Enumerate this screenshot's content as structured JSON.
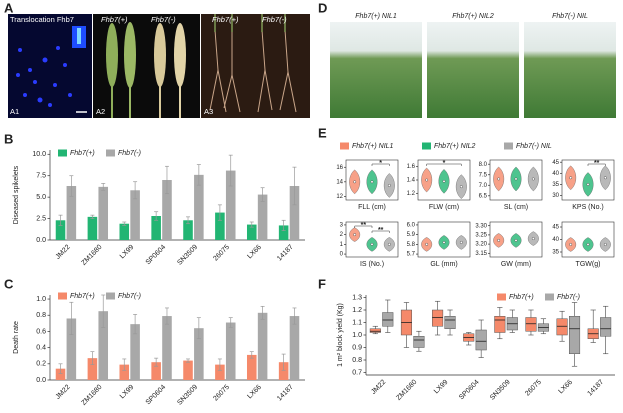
{
  "panel_A": {
    "label": "A",
    "subpanels": [
      {
        "label": "A1",
        "title": "Translocation Fhb7"
      },
      {
        "label": "A2",
        "titles": [
          "Fhb7(+)",
          "Fhb7(-)"
        ]
      },
      {
        "label": "A3",
        "titles": [
          "Fhb7(+)",
          "Fhb7(-)"
        ]
      }
    ]
  },
  "panel_D": {
    "label": "D",
    "photos": [
      "Fhb7(+) NIL1",
      "Fhb7(+) NIL2",
      "Fhb7(-) NIL"
    ]
  },
  "chart_data": [
    {
      "type": "bar",
      "label": "B",
      "ylabel": "Diseased spikelets",
      "categories": [
        "JM22",
        "ZM1680",
        "LX99",
        "SP0604",
        "SN3509",
        "26075",
        "LX66",
        "14187"
      ],
      "series": [
        {
          "name": "Fhb7(+)",
          "color": "#22b573",
          "values": [
            2.3,
            2.7,
            1.9,
            2.8,
            2.3,
            3.2,
            1.8,
            1.7
          ],
          "errors": [
            0.6,
            0.2,
            0.2,
            0.5,
            0.4,
            0.9,
            0.3,
            0.6
          ]
        },
        {
          "name": "Fhb7(-)",
          "color": "#a8a8a8",
          "values": [
            6.3,
            6.2,
            5.8,
            7.0,
            7.6,
            8.1,
            5.3,
            6.3
          ],
          "errors": [
            1.2,
            0.4,
            1.0,
            1.6,
            1.2,
            1.8,
            0.8,
            2.2
          ]
        }
      ],
      "ylim": [
        0,
        10.5
      ],
      "yticks": [
        {
          "value": 0,
          "label": "0.0"
        },
        2.5,
        {
          "value": 5,
          "label": "5.0"
        },
        7.5,
        {
          "value": 10,
          "label": "10.0"
        }
      ]
    },
    {
      "type": "bar",
      "label": "C",
      "ylabel": "Death rate",
      "categories": [
        "JM22",
        "ZM1680",
        "LX99",
        "SP0604",
        "SN3509",
        "26075",
        "LX66",
        "14187"
      ],
      "series": [
        {
          "name": "Fhb7(+)",
          "color": "#f5896a",
          "values": [
            0.14,
            0.27,
            0.19,
            0.22,
            0.24,
            0.19,
            0.31,
            0.22
          ],
          "errors": [
            0.06,
            0.08,
            0.07,
            0.05,
            0.02,
            0.07,
            0.04,
            0.1
          ]
        },
        {
          "name": "Fhb7(-)",
          "color": "#a8a8a8",
          "values": [
            0.76,
            0.85,
            0.69,
            0.79,
            0.64,
            0.71,
            0.83,
            0.79
          ],
          "errors": [
            0.2,
            0.2,
            0.12,
            0.1,
            0.13,
            0.06,
            0.08,
            0.1
          ]
        }
      ],
      "ylim": [
        0,
        1.05
      ],
      "yticks": [
        {
          "value": 0,
          "label": "0.0"
        },
        0.2,
        0.4,
        0.6,
        0.8,
        {
          "value": 1,
          "label": "1.0"
        }
      ]
    },
    {
      "type": "violin",
      "label": "E",
      "series": [
        {
          "name": "Fhb7(+) NIL1",
          "color": "#f5896a"
        },
        {
          "name": "Fhb7(+) NIL2",
          "color": "#22b573"
        },
        {
          "name": "Fhb7(-) NIL",
          "color": "#a8a8a8"
        }
      ],
      "panels": [
        {
          "xlabel": "FLL (cm)",
          "ylim": [
            11.5,
            17
          ],
          "yticks": [
            12,
            14,
            16
          ],
          "medians": [
            14,
            14,
            13.5
          ],
          "significance": [
            {
              "label": "*",
              "between": [
                "Fhb7(+) NIL2",
                "Fhb7(-) NIL"
              ]
            }
          ]
        },
        {
          "xlabel": "FLW (cm)",
          "ylim": [
            1.1,
            1.7
          ],
          "yticks": [
            1.2,
            1.4,
            1.6
          ],
          "medians": [
            1.4,
            1.38,
            1.3
          ],
          "significance": [
            {
              "label": "*",
              "between": [
                "Fhb7(+) NIL1",
                "Fhb7(-) NIL"
              ]
            }
          ]
        },
        {
          "xlabel": "SL (cm)",
          "ylim": [
            6.3,
            8.2
          ],
          "yticks": [
            6.5,
            {
              "value": 7,
              "label": "7.0"
            },
            7.5,
            {
              "value": 8,
              "label": "8.0"
            }
          ],
          "medians": [
            7.3,
            7.3,
            7.3
          ],
          "significance": []
        },
        {
          "xlabel": "KPS (No.)",
          "ylim": [
            28,
            46
          ],
          "yticks": [
            30,
            35,
            40,
            45
          ],
          "medians": [
            38,
            35,
            38
          ],
          "significance": [
            {
              "label": "**",
              "between": [
                "Fhb7(+) NIL2",
                "Fhb7(-) NIL"
              ]
            }
          ]
        },
        {
          "xlabel": "IS (No.)",
          "ylim": [
            -0.3,
            3.3
          ],
          "yticks": [
            0,
            1,
            2,
            3
          ],
          "medians": [
            2,
            1,
            1
          ],
          "significance": [
            {
              "label": "**",
              "between": [
                "Fhb7(+) NIL1",
                "Fhb7(+) NIL2"
              ]
            },
            {
              "label": "**",
              "between": [
                "Fhb7(+) NIL2",
                "Fhb7(-) NIL"
              ]
            }
          ]
        },
        {
          "xlabel": "GL (mm)",
          "ylim": [
            5.67,
            6.03
          ],
          "yticks": [
            5.7,
            5.8,
            5.9,
            {
              "value": 6,
              "label": "6.0"
            }
          ],
          "medians": [
            5.8,
            5.82,
            5.82
          ],
          "significance": []
        },
        {
          "xlabel": "GW (mm)",
          "ylim": [
            3.13,
            3.32
          ],
          "yticks": [
            3.15,
            {
              "value": 3.2,
              "label": "3.20"
            },
            3.25,
            {
              "value": 3.3,
              "label": "3.30"
            }
          ],
          "medians": [
            3.22,
            3.22,
            3.23
          ],
          "significance": []
        },
        {
          "xlabel": "TGW(g)",
          "ylim": [
            33,
            47
          ],
          "yticks": [
            35,
            40,
            45
          ],
          "medians": [
            38,
            38,
            38
          ],
          "significance": []
        }
      ]
    },
    {
      "type": "box",
      "label": "F",
      "ylabel": "1 m² block yield (Kg)",
      "categories": [
        "JM22",
        "ZM1680",
        "LX99",
        "SP0604",
        "SN3509",
        "26075",
        "LX66",
        "14187"
      ],
      "series": [
        {
          "name": "Fhb7(+)",
          "color": "#f5896a",
          "values": [
            [
              1.01,
              1.02,
              1.03,
              1.05,
              1.07
            ],
            [
              0.9,
              1.0,
              1.1,
              1.2,
              1.26
            ],
            [
              1.0,
              1.07,
              1.14,
              1.2,
              1.27
            ],
            [
              0.92,
              0.95,
              0.98,
              1.01,
              1.02
            ],
            [
              0.97,
              1.02,
              1.12,
              1.15,
              1.22
            ],
            [
              1.0,
              1.03,
              1.09,
              1.14,
              1.2
            ],
            [
              0.95,
              1.0,
              1.07,
              1.13,
              1.19
            ],
            [
              0.94,
              0.97,
              1.01,
              1.05,
              1.2
            ]
          ]
        },
        {
          "name": "Fhb7(-)",
          "color": "#a8a8a8",
          "values": [
            [
              1.02,
              1.07,
              1.12,
              1.18,
              1.28
            ],
            [
              0.87,
              0.9,
              0.96,
              0.99,
              1.03
            ],
            [
              1.0,
              1.05,
              1.12,
              1.15,
              1.2
            ],
            [
              0.82,
              0.88,
              0.95,
              1.04,
              1.12
            ],
            [
              1.02,
              1.04,
              1.09,
              1.14,
              1.2
            ],
            [
              1.01,
              1.03,
              1.06,
              1.09,
              1.13
            ],
            [
              0.75,
              0.85,
              1.05,
              1.15,
              1.26
            ],
            [
              0.85,
              0.99,
              1.05,
              1.14,
              1.23
            ]
          ]
        }
      ],
      "ylim": [
        0.68,
        1.32
      ],
      "yticks": [
        0.7,
        0.8,
        0.9,
        {
          "value": 1,
          "label": "1.0"
        },
        1.1,
        1.2,
        1.3
      ]
    }
  ]
}
